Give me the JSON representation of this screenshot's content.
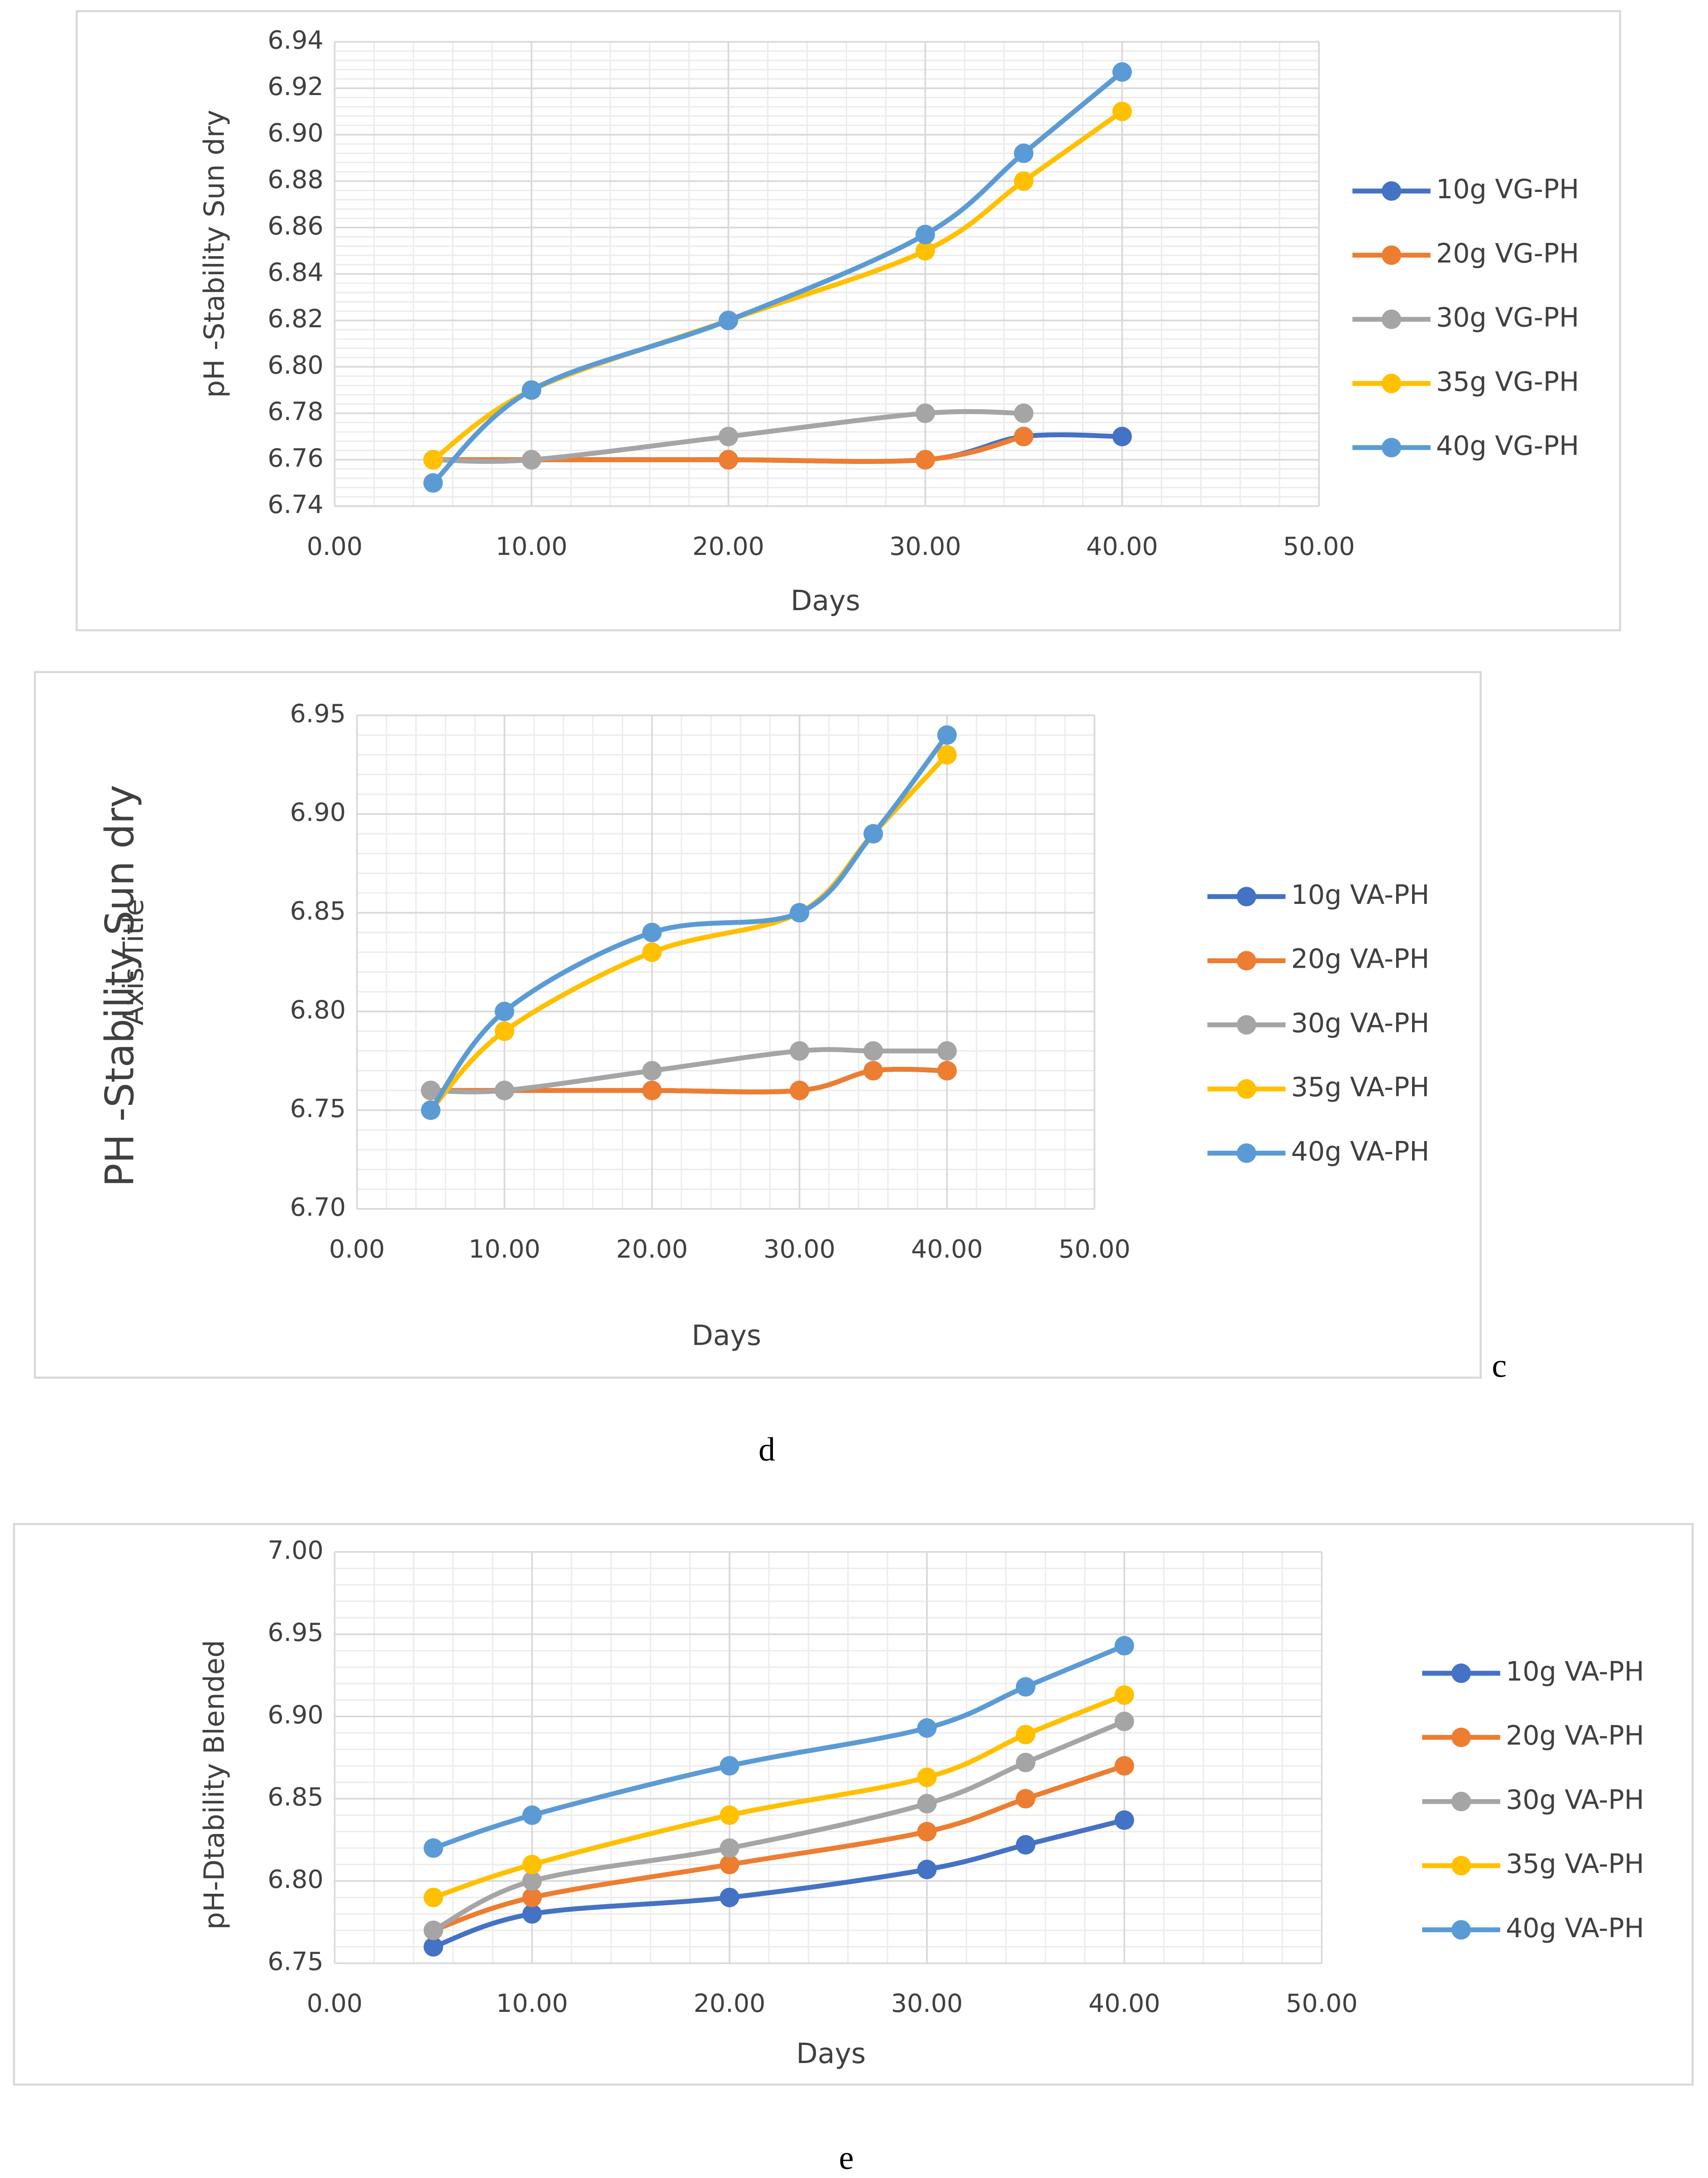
{
  "chart_data": [
    {
      "type": "line",
      "smooth": true,
      "grid": true,
      "minor_grid": true,
      "legend": "right",
      "x_label": "Days",
      "y_label": "pH -Stability Sun dry",
      "x": [
        5,
        10,
        20,
        30,
        35,
        40
      ],
      "xlim": [
        0,
        50
      ],
      "xticks": [
        {
          "value": 0,
          "label": "0.00"
        },
        {
          "value": 10,
          "label": "10.00"
        },
        {
          "value": 20,
          "label": "20.00"
        },
        {
          "value": 30,
          "label": "30.00"
        },
        {
          "value": 40,
          "label": "40.00"
        },
        {
          "value": 50,
          "label": "50.00"
        }
      ],
      "ylim": [
        6.74,
        6.94
      ],
      "yticks": [
        6.74,
        6.76,
        6.78,
        {
          "value": 6.8,
          "label": "6.80"
        },
        6.82,
        6.84,
        6.86,
        6.88,
        {
          "value": 6.9,
          "label": "6.90"
        },
        6.92,
        6.94
      ],
      "series": [
        {
          "name": "10g VG-PH",
          "color": "#4472c4",
          "values": [
            6.76,
            6.76,
            6.76,
            6.76,
            6.77,
            6.77
          ]
        },
        {
          "name": "20g VG-PH",
          "color": "#ed7d31",
          "values": [
            6.76,
            6.76,
            6.76,
            6.76,
            6.77,
            null
          ]
        },
        {
          "name": "30g VG-PH",
          "color": "#a5a5a5",
          "values": [
            6.76,
            6.76,
            6.77,
            6.78,
            6.78,
            null
          ]
        },
        {
          "name": "35g VG-PH",
          "color": "#ffc000",
          "values": [
            6.76,
            6.79,
            6.82,
            6.85,
            6.88,
            6.91
          ]
        },
        {
          "name": "40g VG-PH",
          "color": "#5b9bd5",
          "values": [
            6.75,
            6.79,
            6.82,
            6.857,
            6.892,
            6.927
          ]
        }
      ]
    },
    {
      "type": "line",
      "smooth": true,
      "grid": true,
      "minor_grid": true,
      "legend": "right",
      "x_label": "Days",
      "y_label": "PH -Stability Sun dry",
      "y_label_overlay": "Axis Title",
      "x": [
        5,
        10,
        20,
        30,
        35,
        40
      ],
      "xlim": [
        0,
        50
      ],
      "xticks": [
        {
          "value": 0,
          "label": "0.00"
        },
        {
          "value": 10,
          "label": "10.00"
        },
        {
          "value": 20,
          "label": "20.00"
        },
        {
          "value": 30,
          "label": "30.00"
        },
        {
          "value": 40,
          "label": "40.00"
        },
        {
          "value": 50,
          "label": "50.00"
        }
      ],
      "ylim": [
        6.7,
        6.95
      ],
      "yticks": [
        {
          "value": 6.7,
          "label": "6.70"
        },
        6.75,
        {
          "value": 6.8,
          "label": "6.80"
        },
        6.85,
        {
          "value": 6.9,
          "label": "6.90"
        },
        6.95
      ],
      "series": [
        {
          "name": "10g VA-PH",
          "color": "#4472c4",
          "values": [
            6.76,
            6.76,
            6.76,
            6.76,
            6.77,
            6.77
          ]
        },
        {
          "name": "20g VA-PH",
          "color": "#ed7d31",
          "values": [
            6.76,
            6.76,
            6.76,
            6.76,
            6.77,
            6.77
          ]
        },
        {
          "name": "30g VA-PH",
          "color": "#a5a5a5",
          "values": [
            6.76,
            6.76,
            6.77,
            6.78,
            6.78,
            6.78
          ]
        },
        {
          "name": "35g VA-PH",
          "color": "#ffc000",
          "values": [
            6.75,
            6.79,
            6.83,
            6.85,
            6.89,
            6.93
          ]
        },
        {
          "name": "40g VA-PH",
          "color": "#5b9bd5",
          "values": [
            6.75,
            6.8,
            6.84,
            6.85,
            6.89,
            6.94
          ]
        }
      ]
    },
    {
      "type": "line",
      "smooth": true,
      "grid": true,
      "minor_grid": true,
      "legend": "right",
      "x_label": "Days",
      "y_label": "pH-Dtability Blended",
      "x": [
        5,
        10,
        20,
        30,
        35,
        40
      ],
      "xlim": [
        0,
        50
      ],
      "xticks": [
        {
          "value": 0,
          "label": "0.00"
        },
        {
          "value": 10,
          "label": "10.00"
        },
        {
          "value": 20,
          "label": "20.00"
        },
        {
          "value": 30,
          "label": "30.00"
        },
        {
          "value": 40,
          "label": "40.00"
        },
        {
          "value": 50,
          "label": "50.00"
        }
      ],
      "ylim": [
        6.75,
        7.0
      ],
      "yticks": [
        6.75,
        {
          "value": 6.8,
          "label": "6.80"
        },
        6.85,
        {
          "value": 6.9,
          "label": "6.90"
        },
        6.95,
        {
          "value": 7.0,
          "label": "7.00"
        }
      ],
      "series": [
        {
          "name": "10g VA-PH",
          "color": "#4472c4",
          "values": [
            6.76,
            6.78,
            6.79,
            6.807,
            6.822,
            6.837
          ]
        },
        {
          "name": "20g VA-PH",
          "color": "#ed7d31",
          "values": [
            6.77,
            6.79,
            6.81,
            6.83,
            6.85,
            6.87
          ]
        },
        {
          "name": "30g VA-PH",
          "color": "#a5a5a5",
          "values": [
            6.77,
            6.8,
            6.82,
            6.847,
            6.872,
            6.897
          ]
        },
        {
          "name": "35g VA-PH",
          "color": "#ffc000",
          "values": [
            6.79,
            6.81,
            6.84,
            6.863,
            6.889,
            6.913
          ]
        },
        {
          "name": "40g VA-PH",
          "color": "#5b9bd5",
          "values": [
            6.82,
            6.84,
            6.87,
            6.893,
            6.918,
            6.943
          ]
        }
      ]
    }
  ],
  "captions": [
    "c",
    "d",
    "e"
  ]
}
